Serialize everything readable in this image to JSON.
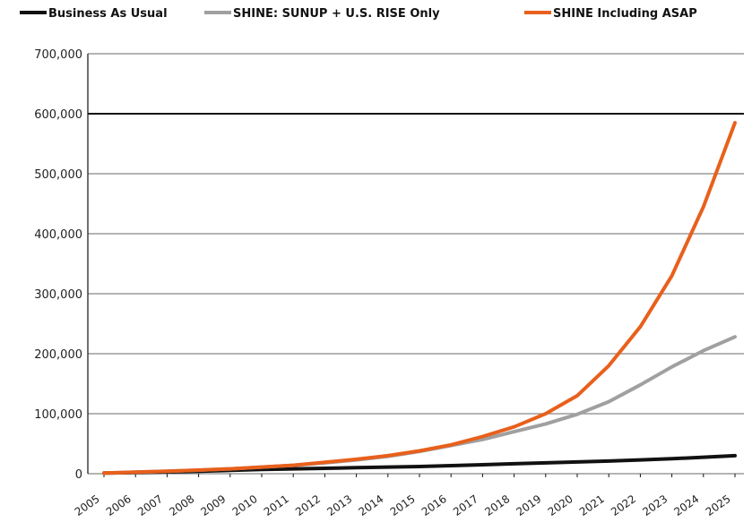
{
  "chart_data": {
    "type": "line",
    "title": "",
    "xlabel": "",
    "ylabel": "",
    "x": [
      "2005",
      "2006",
      "2007",
      "2008",
      "2009",
      "2010",
      "2011",
      "2012",
      "2013",
      "2014",
      "2015",
      "2016",
      "2017",
      "2018",
      "2019",
      "2020",
      "2021",
      "2022",
      "2023",
      "2024",
      "2025"
    ],
    "ylim": [
      0,
      700000
    ],
    "yticks": [
      0,
      100000,
      200000,
      300000,
      400000,
      500000,
      600000,
      700000
    ],
    "ytick_labels": [
      "0",
      "100,000",
      "200,000",
      "300,000",
      "400,000",
      "500,000",
      "600,000",
      "700,000"
    ],
    "grid": true,
    "legend_position": "top",
    "series": [
      {
        "name": "Business As Usual",
        "color": "#111111",
        "values": [
          1000,
          2000,
          3000,
          4000,
          5500,
          7000,
          8000,
          9000,
          10000,
          11000,
          12000,
          13500,
          15000,
          16500,
          18000,
          19500,
          21000,
          23000,
          25000,
          27500,
          30000
        ]
      },
      {
        "name": "SHINE: SUNUP + U.S. RISE Only",
        "color": "#a0a0a0",
        "values": [
          1000,
          2500,
          4000,
          6000,
          8000,
          11000,
          14000,
          18000,
          23000,
          29000,
          37000,
          47000,
          57000,
          70000,
          83000,
          99000,
          120000,
          148000,
          178000,
          205000,
          228000
        ]
      },
      {
        "name": "SHINE Including ASAP",
        "color": "#e8601c",
        "values": [
          1000,
          2500,
          4000,
          6000,
          8000,
          11000,
          14000,
          19000,
          24000,
          30000,
          38000,
          48000,
          62000,
          78000,
          100000,
          130000,
          180000,
          245000,
          330000,
          445000,
          585000
        ]
      }
    ]
  }
}
